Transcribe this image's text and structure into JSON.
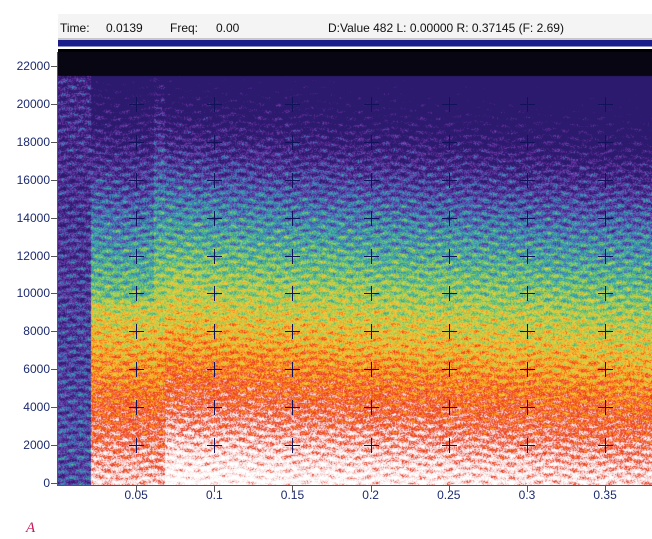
{
  "status": {
    "time_label": "Time:",
    "time_value": "0.0139",
    "freq_label": "Freq:",
    "freq_value": "0.00",
    "readout": "D:Value 482  L: 0.00000  R: 0.37145 (F: 2.69)"
  },
  "figure_letter": "A",
  "axes": {
    "y_ticks": [
      "22000",
      "20000",
      "18000",
      "16000",
      "14000",
      "12000",
      "10000",
      "8000",
      "6000",
      "4000",
      "2000",
      "0"
    ],
    "x_ticks": [
      "0.05",
      "0.1",
      "0.15",
      "0.2",
      "0.25",
      "0.3",
      "0.35"
    ]
  },
  "chart_data": {
    "type": "heatmap",
    "xlabel": "",
    "ylabel": "",
    "x_range": [
      0,
      0.38
    ],
    "y_range": [
      0,
      22000
    ],
    "x_tick_values": [
      0.05,
      0.1,
      0.15,
      0.2,
      0.25,
      0.3,
      0.35
    ],
    "y_tick_values": [
      0,
      2000,
      4000,
      6000,
      8000,
      10000,
      12000,
      14000,
      16000,
      18000,
      20000,
      22000
    ],
    "colormap": [
      "#2b1a6e",
      "#6a2fa0",
      "#3a7fbf",
      "#3fb59a",
      "#9ccf52",
      "#f0d040",
      "#ff8c1a",
      "#e8321a",
      "#f4c8c8",
      "#ffffff"
    ],
    "grid": "crosshair markers at tick intersections"
  }
}
